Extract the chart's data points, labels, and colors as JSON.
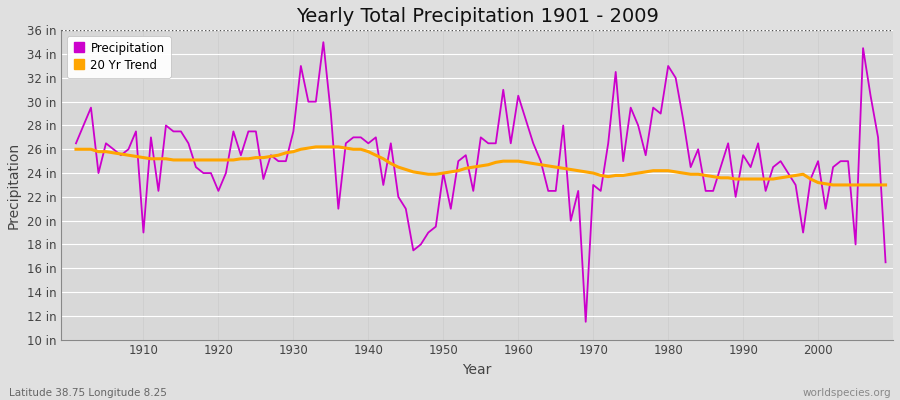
{
  "title": "Yearly Total Precipitation 1901 - 2009",
  "xlabel": "Year",
  "ylabel": "Precipitation",
  "lat_lon_label": "Latitude 38.75 Longitude 8.25",
  "source_label": "worldspecies.org",
  "years": [
    1901,
    1902,
    1903,
    1904,
    1905,
    1906,
    1907,
    1908,
    1909,
    1910,
    1911,
    1912,
    1913,
    1914,
    1915,
    1916,
    1917,
    1918,
    1919,
    1920,
    1921,
    1922,
    1923,
    1924,
    1925,
    1926,
    1927,
    1928,
    1929,
    1930,
    1931,
    1932,
    1933,
    1934,
    1935,
    1936,
    1937,
    1938,
    1939,
    1940,
    1941,
    1942,
    1943,
    1944,
    1945,
    1946,
    1947,
    1948,
    1949,
    1950,
    1951,
    1952,
    1953,
    1954,
    1955,
    1956,
    1957,
    1958,
    1959,
    1960,
    1961,
    1962,
    1963,
    1964,
    1965,
    1966,
    1967,
    1968,
    1969,
    1970,
    1971,
    1972,
    1973,
    1974,
    1975,
    1976,
    1977,
    1978,
    1979,
    1980,
    1981,
    1982,
    1983,
    1984,
    1985,
    1986,
    1987,
    1988,
    1989,
    1990,
    1991,
    1992,
    1993,
    1994,
    1995,
    1996,
    1997,
    1998,
    1999,
    2000,
    2001,
    2002,
    2003,
    2004,
    2005,
    2006,
    2007,
    2008,
    2009
  ],
  "precipitation": [
    26.5,
    28.0,
    29.5,
    24.0,
    26.5,
    26.0,
    25.5,
    26.0,
    27.5,
    19.0,
    27.0,
    22.5,
    28.0,
    27.5,
    27.5,
    26.5,
    24.5,
    24.0,
    24.0,
    22.5,
    24.0,
    27.5,
    25.5,
    27.5,
    27.5,
    23.5,
    25.5,
    25.0,
    25.0,
    27.5,
    33.0,
    30.0,
    30.0,
    35.0,
    29.0,
    21.0,
    26.5,
    27.0,
    27.0,
    26.5,
    27.0,
    23.0,
    26.5,
    22.0,
    21.0,
    17.5,
    18.0,
    19.0,
    19.5,
    24.0,
    21.0,
    25.0,
    25.5,
    22.5,
    27.0,
    26.5,
    26.5,
    31.0,
    26.5,
    30.5,
    28.5,
    26.5,
    25.0,
    22.5,
    22.5,
    28.0,
    20.0,
    22.5,
    11.5,
    23.0,
    22.5,
    26.5,
    32.5,
    25.0,
    29.5,
    28.0,
    25.5,
    29.5,
    29.0,
    33.0,
    32.0,
    28.5,
    24.5,
    26.0,
    22.5,
    22.5,
    24.5,
    26.5,
    22.0,
    25.5,
    24.5,
    26.5,
    22.5,
    24.5,
    25.0,
    24.0,
    23.0,
    19.0,
    23.5,
    25.0,
    21.0,
    24.5,
    25.0,
    25.0,
    18.0,
    34.5,
    30.5,
    27.0,
    16.5
  ],
  "trend": [
    26.0,
    26.0,
    26.0,
    25.8,
    25.8,
    25.7,
    25.6,
    25.5,
    25.4,
    25.3,
    25.2,
    25.2,
    25.2,
    25.1,
    25.1,
    25.1,
    25.1,
    25.1,
    25.1,
    25.1,
    25.1,
    25.1,
    25.2,
    25.2,
    25.3,
    25.3,
    25.4,
    25.5,
    25.7,
    25.8,
    26.0,
    26.1,
    26.2,
    26.2,
    26.2,
    26.2,
    26.1,
    26.0,
    26.0,
    25.8,
    25.5,
    25.2,
    24.8,
    24.5,
    24.3,
    24.1,
    24.0,
    23.9,
    23.9,
    24.0,
    24.1,
    24.2,
    24.4,
    24.5,
    24.6,
    24.7,
    24.9,
    25.0,
    25.0,
    25.0,
    24.9,
    24.8,
    24.7,
    24.6,
    24.5,
    24.4,
    24.3,
    24.2,
    24.1,
    24.0,
    23.8,
    23.7,
    23.8,
    23.8,
    23.9,
    24.0,
    24.1,
    24.2,
    24.2,
    24.2,
    24.1,
    24.0,
    23.9,
    23.9,
    23.8,
    23.7,
    23.6,
    23.6,
    23.5,
    23.5,
    23.5,
    23.5,
    23.5,
    23.5,
    23.6,
    23.7,
    23.8,
    23.9,
    23.5,
    23.2,
    23.1,
    23.0,
    23.0,
    23.0,
    23.0,
    23.0,
    23.0,
    23.0,
    23.0
  ],
  "ylim": [
    10,
    36
  ],
  "ylim_display": [
    10,
    36
  ],
  "yticks": [
    10,
    12,
    14,
    16,
    18,
    20,
    22,
    24,
    26,
    28,
    30,
    32,
    34,
    36
  ],
  "xticks": [
    1910,
    1920,
    1930,
    1940,
    1950,
    1960,
    1970,
    1980,
    1990,
    2000
  ],
  "precip_color": "#CC00CC",
  "trend_color": "#FFA500",
  "fig_bg_color": "#E0E0E0",
  "plot_bg_color": "#D8D8D8",
  "grid_color": "#FFFFFF",
  "vgrid_color": "#CCCCCC",
  "title_fontsize": 14,
  "axis_fontsize": 10,
  "tick_fontsize": 8.5,
  "label_color": "#444444",
  "dashed_line_y": 36
}
